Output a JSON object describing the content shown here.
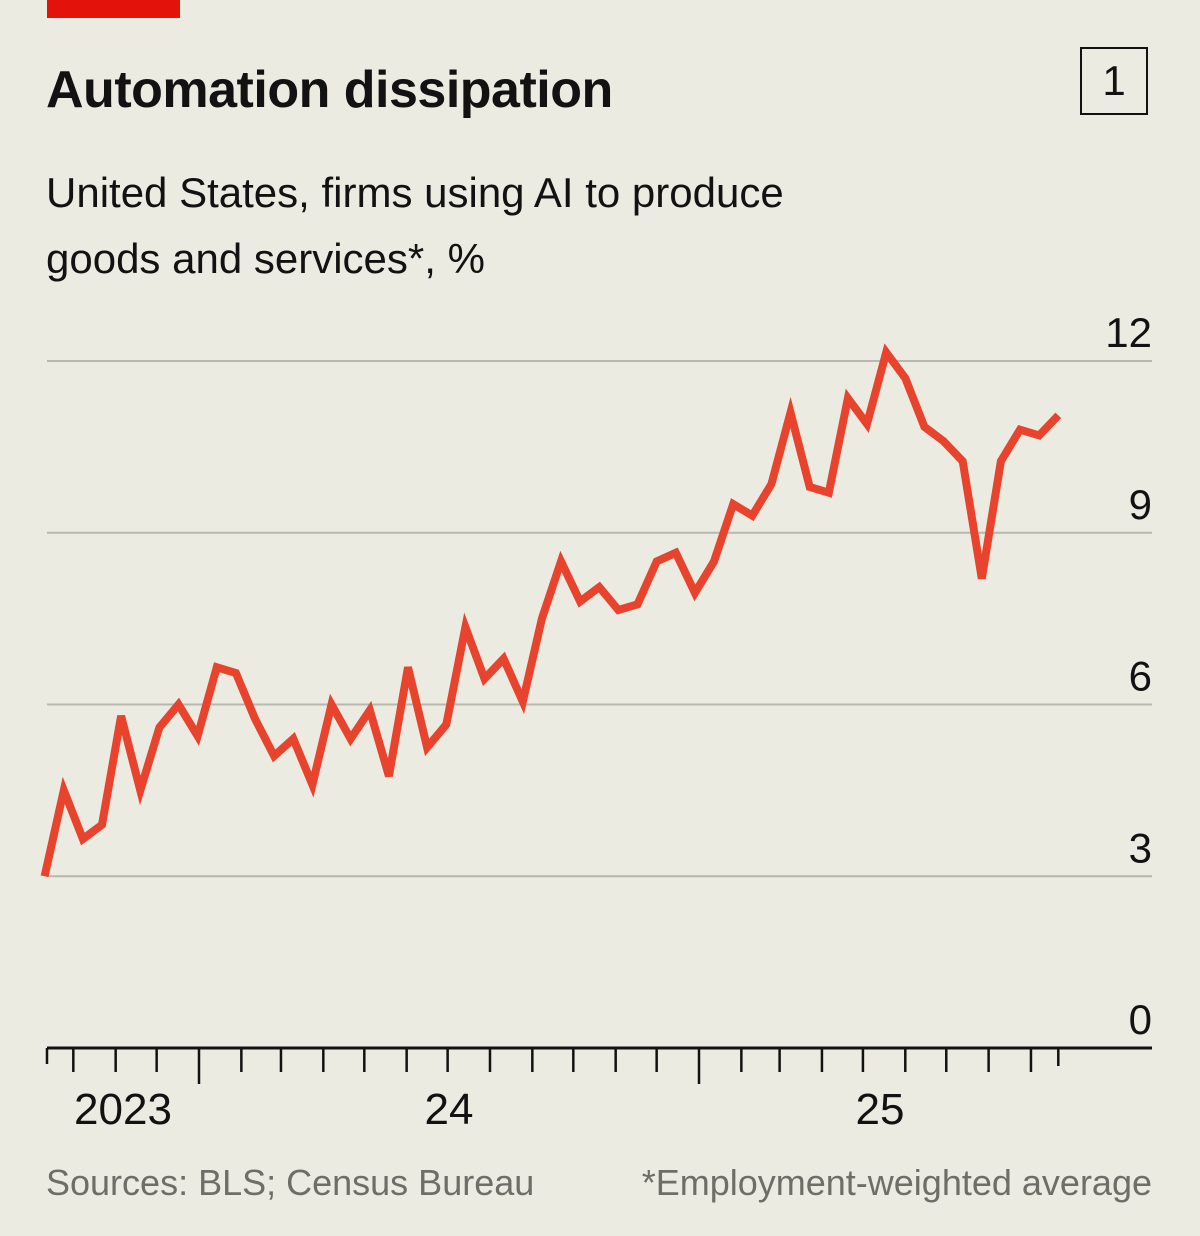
{
  "header": {
    "title": "Automation dissipation",
    "chart_number": "1",
    "subtitle": "United States, firms using AI to produce goods and services*, %"
  },
  "footer": {
    "sources": "Sources: BLS; Census Bureau",
    "note": "*Employment-weighted average"
  },
  "colors": {
    "line": "#e8432d",
    "accent_bar": "#e3120b",
    "background": "#ecebe1",
    "grid": "#b8b8ae"
  },
  "chart_data": {
    "type": "line",
    "title": "Automation dissipation",
    "subtitle": "United States, firms using AI to produce goods and services*, %",
    "ylim": [
      0,
      12
    ],
    "yticks": [
      0,
      3,
      6,
      9,
      12
    ],
    "ytick_labels": [
      "0",
      "3",
      "6",
      "9",
      "12"
    ],
    "xtick_labels": [
      {
        "label": "2023",
        "year": 2023
      },
      {
        "label": "24",
        "year": 2024
      },
      {
        "label": "25",
        "year": 2025
      }
    ],
    "grid": true,
    "x": [
      "2023-09-10",
      "2023-09-24",
      "2023-10-08",
      "2023-10-22",
      "2023-11-05",
      "2023-11-19",
      "2023-12-03",
      "2023-12-17",
      "2023-12-31",
      "2024-01-14",
      "2024-01-28",
      "2024-02-11",
      "2024-02-25",
      "2024-03-10",
      "2024-03-24",
      "2024-04-07",
      "2024-04-21",
      "2024-05-05",
      "2024-05-19",
      "2024-06-02",
      "2024-06-16",
      "2024-06-30",
      "2024-07-14",
      "2024-07-28",
      "2024-08-11",
      "2024-08-25",
      "2024-09-08",
      "2024-09-22",
      "2024-10-06",
      "2024-10-20",
      "2024-11-03",
      "2024-11-17",
      "2024-12-01",
      "2024-12-15",
      "2024-12-29",
      "2025-01-12",
      "2025-01-26",
      "2025-02-09",
      "2025-02-23",
      "2025-03-09",
      "2025-03-23",
      "2025-04-06",
      "2025-04-20",
      "2025-05-04",
      "2025-05-18",
      "2025-06-01",
      "2025-06-15",
      "2025-06-29",
      "2025-07-13",
      "2025-07-27",
      "2025-08-10",
      "2025-08-24",
      "2025-09-07",
      "2025-09-21"
    ],
    "series": [
      {
        "values": [
          3.0,
          4.5,
          3.65,
          3.9,
          5.8,
          4.5,
          5.6,
          6.0,
          5.45,
          6.65,
          6.55,
          5.75,
          5.1,
          5.4,
          4.6,
          6.0,
          5.4,
          5.9,
          4.75,
          6.65,
          5.25,
          5.65,
          7.35,
          6.45,
          6.8,
          6.05,
          7.5,
          8.5,
          7.8,
          8.05,
          7.65,
          7.75,
          8.5,
          8.65,
          7.95,
          8.5,
          9.5,
          9.3,
          9.85,
          11.1,
          9.8,
          9.7,
          11.35,
          10.9,
          12.15,
          11.7,
          10.85,
          10.6,
          10.25,
          8.2,
          10.25,
          10.8,
          10.7,
          11.05
        ]
      }
    ]
  }
}
